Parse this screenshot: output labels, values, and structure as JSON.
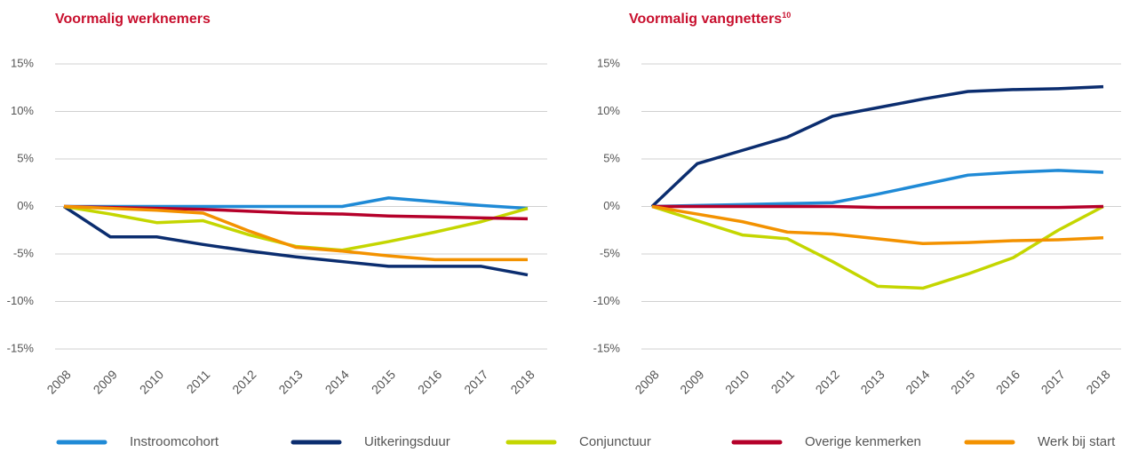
{
  "chart_data": [
    {
      "type": "line",
      "title": "Voormalig werknemers",
      "categories": [
        "2008",
        "2009",
        "2010",
        "2011",
        "2012",
        "2013",
        "2014",
        "2015",
        "2016",
        "2017",
        "2018"
      ],
      "ylim": [
        -15,
        15
      ],
      "yticks": [
        {
          "value": -15,
          "label": "-15%"
        },
        {
          "value": -10,
          "label": "-10%"
        },
        {
          "value": -5,
          "label": "-5%"
        },
        {
          "value": 0,
          "label": "0%"
        },
        {
          "value": 5,
          "label": "5%"
        },
        {
          "value": 10,
          "label": "10%"
        },
        {
          "value": 15,
          "label": "15%"
        }
      ],
      "grid": true,
      "series": [
        {
          "name": "Instroomcohort",
          "color": "#1f8ad6",
          "values": [
            0,
            0,
            0,
            0,
            0,
            0,
            0,
            0.9,
            0.5,
            0.1,
            -0.2
          ]
        },
        {
          "name": "Uitkeringsduur",
          "color": "#0b2d6f",
          "values": [
            0,
            -3.2,
            -3.2,
            -4,
            -4.7,
            -5.3,
            -5.8,
            -6.3,
            -6.3,
            -6.3,
            -7.2
          ]
        },
        {
          "name": "Conjunctuur",
          "color": "#c4d600",
          "values": [
            0,
            -0.8,
            -1.7,
            -1.5,
            -3,
            -4.2,
            -4.6,
            -3.7,
            -2.7,
            -1.6,
            -0.2
          ]
        },
        {
          "name": "Overige kenmerken",
          "color": "#b5002a",
          "values": [
            0,
            -0.1,
            -0.2,
            -0.3,
            -0.5,
            -0.7,
            -0.8,
            -1,
            -1.1,
            -1.2,
            -1.3
          ]
        },
        {
          "name": "Werk bij start",
          "color": "#f39200",
          "values": [
            0,
            -0.2,
            -0.4,
            -0.7,
            -2.6,
            -4.3,
            -4.7,
            -5.2,
            -5.6,
            -5.6,
            -5.6
          ]
        }
      ]
    },
    {
      "type": "line",
      "title": "Voormalig vangnetters",
      "title_footnote": "10",
      "categories": [
        "2008",
        "2009",
        "2010",
        "2011",
        "2012",
        "2013",
        "2014",
        "2015",
        "2016",
        "2017",
        "2018"
      ],
      "ylim": [
        -15,
        15
      ],
      "yticks": [
        {
          "value": -15,
          "label": "-15%"
        },
        {
          "value": -10,
          "label": "-10%"
        },
        {
          "value": -5,
          "label": "-5%"
        },
        {
          "value": 0,
          "label": "0%"
        },
        {
          "value": 5,
          "label": "5%"
        },
        {
          "value": 10,
          "label": "10%"
        },
        {
          "value": 15,
          "label": "15%"
        }
      ],
      "grid": true,
      "series": [
        {
          "color": "#1f8ad6",
          "values": [
            0,
            0.1,
            0.2,
            0.3,
            0.4,
            1.3,
            2.3,
            3.3,
            3.6,
            3.8,
            3.6
          ]
        },
        {
          "color": "#0b2d6f",
          "values": [
            0,
            4.5,
            5.9,
            7.3,
            9.5,
            10.4,
            11.3,
            12.1,
            12.3,
            12.4,
            12.6
          ]
        },
        {
          "color": "#c4d600",
          "values": [
            0,
            -1.5,
            -3,
            -3.4,
            -5.8,
            -8.4,
            -8.6,
            -7.1,
            -5.4,
            -2.5,
            0
          ]
        },
        {
          "color": "#b5002a",
          "values": [
            0,
            0,
            0,
            0,
            0,
            -0.1,
            -0.1,
            -0.1,
            -0.1,
            -0.1,
            0
          ]
        },
        {
          "color": "#f39200",
          "values": [
            0,
            -0.8,
            -1.6,
            -2.7,
            -2.9,
            -3.4,
            -3.9,
            -3.8,
            -3.6,
            -3.5,
            -3.3
          ]
        }
      ]
    }
  ]
}
